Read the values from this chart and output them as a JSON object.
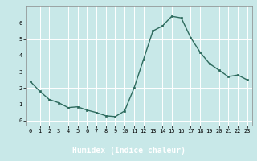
{
  "x": [
    0,
    1,
    2,
    3,
    4,
    5,
    6,
    7,
    8,
    9,
    10,
    11,
    12,
    13,
    14,
    15,
    16,
    17,
    18,
    19,
    20,
    21,
    22,
    23
  ],
  "y": [
    2.4,
    1.8,
    1.3,
    1.1,
    0.8,
    0.85,
    0.65,
    0.5,
    0.3,
    0.25,
    0.6,
    2.0,
    3.75,
    5.5,
    5.8,
    6.4,
    6.3,
    5.1,
    4.2,
    3.5,
    3.1,
    2.7,
    2.8,
    2.5
  ],
  "line_color": "#2e6b5e",
  "marker": "s",
  "marker_size": 2,
  "bg_color": "#c8e8e8",
  "grid_color": "#ffffff",
  "xlabel": "Humidex (Indice chaleur)",
  "xlabel_fontsize": 7,
  "xlabel_color": "#ffffff",
  "xlabel_bg": "#2e3a6b",
  "tick_fontsize": 5,
  "linewidth": 1.0,
  "ylim": [
    -0.3,
    7.0
  ],
  "xlim": [
    -0.5,
    23.5
  ],
  "yticks": [
    0,
    1,
    2,
    3,
    4,
    5,
    6
  ],
  "xticks": [
    0,
    1,
    2,
    3,
    4,
    5,
    6,
    7,
    8,
    9,
    10,
    11,
    12,
    13,
    14,
    15,
    16,
    17,
    18,
    19,
    20,
    21,
    22,
    23
  ]
}
